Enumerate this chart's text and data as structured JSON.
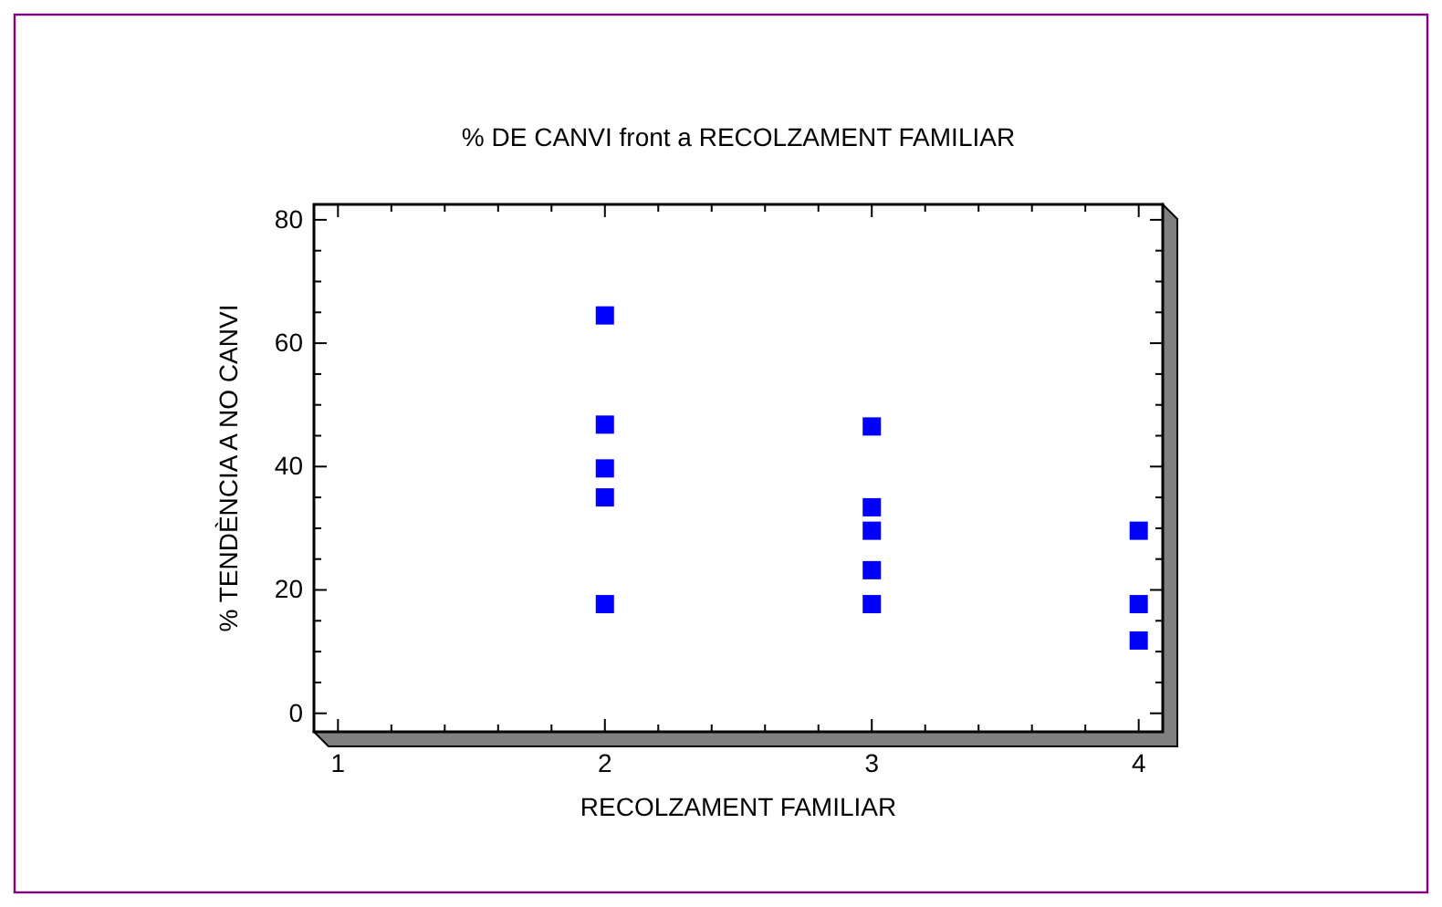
{
  "chart_data": {
    "type": "scatter",
    "title": "% DE CANVI front a RECOLZAMENT FAMILIAR",
    "xlabel": "RECOLZAMENT FAMILIAR",
    "ylabel": "% TENDÈNCIA A NO CANVI",
    "x": [
      2,
      2,
      2,
      2,
      2,
      3,
      3,
      3,
      3,
      3,
      4,
      4,
      4
    ],
    "values": [
      64.5,
      46.8,
      39.7,
      35,
      17.7,
      46.5,
      33.4,
      29.6,
      23.2,
      17.7,
      29.6,
      17.7,
      11.8
    ],
    "color": "#0000ff",
    "marker": "square",
    "xlim": [
      0.91,
      4.09
    ],
    "ylim": [
      -3,
      82.5
    ],
    "xticks": [
      1,
      {
        "value": 1.2,
        "label": null
      },
      {
        "value": 1.4,
        "label": null
      },
      {
        "value": 1.6,
        "label": null
      },
      {
        "value": 1.8,
        "label": null
      },
      2,
      {
        "value": 2.2,
        "label": null
      },
      {
        "value": 2.4,
        "label": null
      },
      {
        "value": 2.6,
        "label": null
      },
      {
        "value": 2.8,
        "label": null
      },
      3,
      {
        "value": 3.2,
        "label": null
      },
      {
        "value": 3.4,
        "label": null
      },
      {
        "value": 3.6,
        "label": null
      },
      {
        "value": 3.8,
        "label": null
      },
      4
    ],
    "yticks": [
      0,
      {
        "value": 5,
        "label": null
      },
      {
        "value": 10,
        "label": null
      },
      {
        "value": 15,
        "label": null
      },
      20,
      {
        "value": 25,
        "label": null
      },
      {
        "value": 30,
        "label": null
      },
      {
        "value": 35,
        "label": null
      },
      40,
      {
        "value": 45,
        "label": null
      },
      {
        "value": 50,
        "label": null
      },
      {
        "value": 55,
        "label": null
      },
      60,
      {
        "value": 65,
        "label": null
      },
      {
        "value": 70,
        "label": null
      },
      {
        "value": 75,
        "label": null
      },
      80
    ]
  }
}
